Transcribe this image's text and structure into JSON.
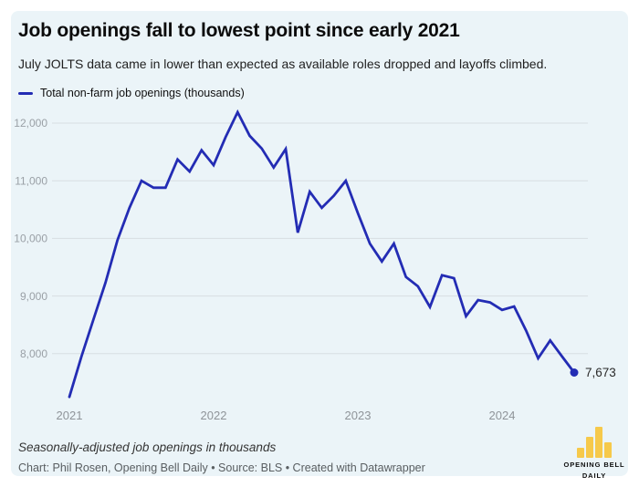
{
  "header": {
    "title": "Job openings fall to lowest point since early 2021",
    "subtitle": "July JOLTS data came in lower than expected as available roles dropped and layoffs climbed."
  },
  "legend": {
    "label": "Total non-farm job openings (thousands)"
  },
  "chart_data": {
    "type": "line",
    "title": "Job openings fall to lowest point since early 2021",
    "xlabel": "",
    "ylabel": "Total non-farm job openings (thousands)",
    "grid": true,
    "legend_position": "top-left",
    "y_ticks": [
      12000,
      11000,
      10000,
      9000,
      8000
    ],
    "x_ticks": [
      "2021",
      "2022",
      "2023",
      "2024"
    ],
    "ylim": [
      7100,
      12400
    ],
    "last_point_label": "7,673",
    "series": [
      {
        "name": "Total non-farm job openings (thousands)",
        "color": "#232cb4",
        "months": [
          "2021-01",
          "2021-02",
          "2021-03",
          "2021-04",
          "2021-05",
          "2021-06",
          "2021-07",
          "2021-08",
          "2021-09",
          "2021-10",
          "2021-11",
          "2021-12",
          "2022-01",
          "2022-02",
          "2022-03",
          "2022-04",
          "2022-05",
          "2022-06",
          "2022-07",
          "2022-08",
          "2022-09",
          "2022-10",
          "2022-11",
          "2022-12",
          "2023-01",
          "2023-02",
          "2023-03",
          "2023-04",
          "2023-05",
          "2023-06",
          "2023-07",
          "2023-08",
          "2023-09",
          "2023-10",
          "2023-11",
          "2023-12",
          "2024-01",
          "2024-02",
          "2024-03",
          "2024-04",
          "2024-05",
          "2024-06",
          "2024-07"
        ],
        "values": [
          7250,
          7950,
          8590,
          9230,
          9970,
          10530,
          11000,
          10880,
          10880,
          11370,
          11160,
          11530,
          11270,
          11760,
          12190,
          11780,
          11560,
          11230,
          11550,
          10100,
          10810,
          10530,
          10740,
          11000,
          10440,
          9910,
          9600,
          9910,
          9330,
          9170,
          8810,
          9360,
          9310,
          8650,
          8930,
          8890,
          8760,
          8820,
          8400,
          7920,
          8230,
          7950,
          7673
        ]
      }
    ]
  },
  "footer": {
    "note": "Seasonally-adjusted job openings in thousands",
    "byline": "Chart: Phil Rosen, Opening Bell Daily • Source: BLS • Created with Datawrapper"
  },
  "logo": {
    "line1": "OPENING BELL",
    "line2": "DAILY",
    "bar_color": "#f6c94a"
  },
  "colors": {
    "line": "#232cb4",
    "card_bg": "#ebf4f8",
    "grid": "#d7dee2",
    "y_tick_text": "#9aa0a6",
    "x_tick_text": "#8f9499",
    "end_label_text": "#2a2a2a"
  }
}
